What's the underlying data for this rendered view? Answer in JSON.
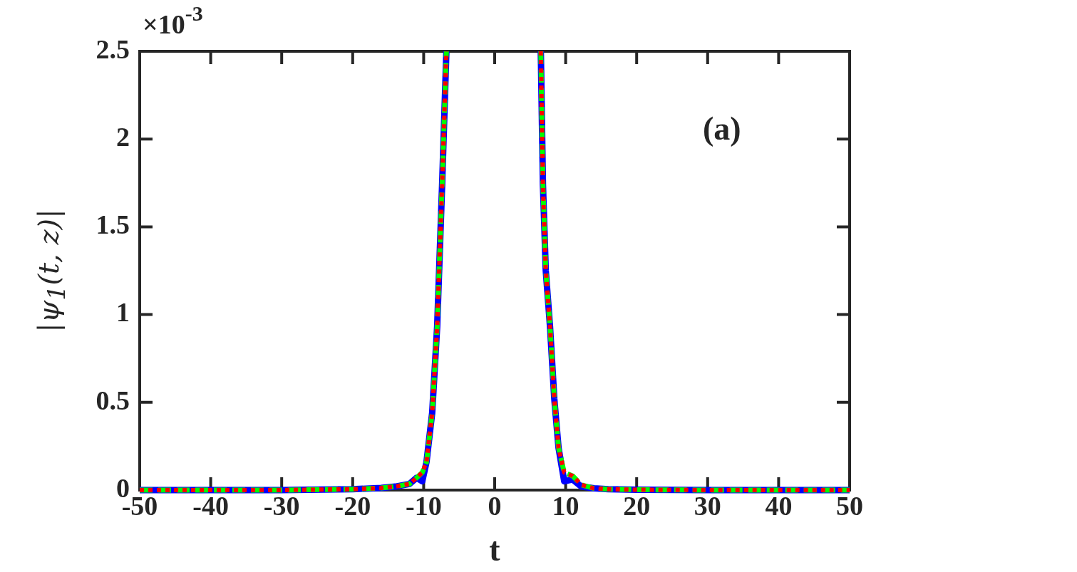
{
  "chart_data": {
    "type": "line",
    "xlabel": "t",
    "ylabel": "|ψ$_{1}$(t, z)|",
    "annotations": [
      "×10$^{-3}$",
      "(a)"
    ],
    "x": [
      -50,
      -40,
      -30,
      -20,
      -16,
      -14,
      -12,
      -11,
      -10.2,
      -9.6,
      -8.8,
      -8.1,
      -7.4,
      -6.8,
      0,
      6.5,
      6.8,
      7.2,
      7.8,
      8.4,
      9,
      9.8,
      11,
      12.2,
      14,
      16,
      20,
      30,
      40,
      50
    ],
    "xlim": [
      -50,
      50
    ],
    "xticks": [
      -50,
      -40,
      -30,
      -20,
      -10,
      0,
      10,
      20,
      30,
      40,
      50
    ],
    "ylim": [
      0,
      2.5
    ],
    "yticks": [
      0,
      0.5,
      1,
      1.5,
      2,
      2.5
    ],
    "marker": "none",
    "series": [
      {
        "color": "#0000ff",
        "line_style": "solid",
        "values": [
          0,
          0,
          0,
          0.005,
          0.012,
          0.02,
          0.035,
          0.07,
          0.05,
          0.16,
          0.44,
          0.93,
          1.74,
          2.5,
          null,
          2.5,
          1.74,
          1.25,
          0.93,
          0.52,
          0.24,
          0.05,
          0.06,
          0.02,
          0.01,
          0.005,
          0.002,
          0,
          0,
          0
        ]
      },
      {
        "color": "#00ff00",
        "line_style": "dashed",
        "values": [
          0,
          0,
          0,
          0.005,
          0.012,
          0.02,
          0.035,
          0.07,
          0.1,
          0.16,
          0.44,
          0.93,
          1.74,
          2.5,
          null,
          2.5,
          1.74,
          1.25,
          0.93,
          0.52,
          0.24,
          0.1,
          0.08,
          0.03,
          0.01,
          0.005,
          0.002,
          0,
          0,
          0
        ]
      },
      {
        "color": "#ff0000",
        "line_style": "dotted",
        "values": [
          0,
          0,
          0,
          0.005,
          0.012,
          0.02,
          0.035,
          0.07,
          0.1,
          0.16,
          0.44,
          0.93,
          1.74,
          2.5,
          null,
          2.5,
          1.74,
          1.25,
          0.93,
          0.52,
          0.24,
          0.1,
          0.08,
          0.03,
          0.01,
          0.005,
          0.002,
          0,
          0,
          0
        ]
      }
    ]
  }
}
